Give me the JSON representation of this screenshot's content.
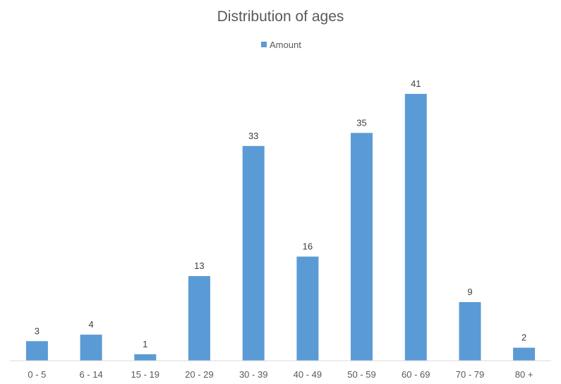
{
  "chart_data": {
    "type": "bar",
    "title": "Distribution of ages",
    "categories": [
      "0 - 5",
      "6 - 14",
      "15 - 19",
      "20 - 29",
      "30 - 39",
      "40 - 49",
      "50 - 59",
      "60 - 69",
      "70 - 79",
      "80 +"
    ],
    "series": [
      {
        "name": "Amount",
        "values": [
          3,
          4,
          1,
          13,
          33,
          16,
          35,
          41,
          9,
          2
        ],
        "color": "#5B9BD5"
      }
    ],
    "ylim": [
      0,
      41
    ],
    "grid": false,
    "legend": "top-center",
    "data_labels": true
  }
}
